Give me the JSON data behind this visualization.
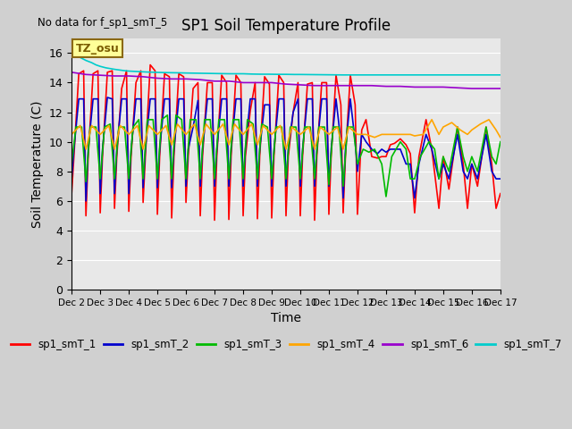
{
  "title": "SP1 Soil Temperature Profile",
  "xlabel": "Time",
  "ylabel": "Soil Temperature (C)",
  "no_data_label": "No data for f_sp1_smT_5",
  "tz_label": "TZ_osu",
  "ylim": [
    0,
    17
  ],
  "yticks": [
    0,
    2,
    4,
    6,
    8,
    10,
    12,
    14,
    16
  ],
  "xtick_labels": [
    "Dec 2",
    "Dec 3",
    "Dec 4",
    "Dec 5",
    "Dec 6",
    "Dec 7",
    "Dec 8",
    "Dec 9",
    "Dec 10",
    "Dec 11",
    "Dec 12",
    "Dec 13",
    "Dec 14",
    "Dec 15",
    "Dec 16",
    "Dec 17"
  ],
  "legend_entries": [
    {
      "label": "sp1_smT_1",
      "color": "#ff0000"
    },
    {
      "label": "sp1_smT_2",
      "color": "#0000cd"
    },
    {
      "label": "sp1_smT_3",
      "color": "#00bb00"
    },
    {
      "label": "sp1_smT_4",
      "color": "#ffa500"
    },
    {
      "label": "sp1_smT_6",
      "color": "#9900cc"
    },
    {
      "label": "sp1_smT_7",
      "color": "#00cccc"
    }
  ],
  "series": {
    "sp1_smT_1": {
      "color": "#ff0000",
      "x": [
        0.0,
        0.08,
        0.25,
        0.42,
        0.5,
        0.58,
        0.75,
        0.92,
        1.0,
        1.08,
        1.25,
        1.42,
        1.5,
        1.58,
        1.75,
        1.92,
        2.0,
        2.08,
        2.25,
        2.42,
        2.5,
        2.58,
        2.75,
        2.92,
        3.0,
        3.08,
        3.25,
        3.42,
        3.5,
        3.58,
        3.75,
        3.92,
        4.0,
        4.08,
        4.25,
        4.42,
        4.5,
        4.58,
        4.75,
        4.92,
        5.0,
        5.08,
        5.25,
        5.42,
        5.5,
        5.58,
        5.75,
        5.92,
        6.0,
        6.08,
        6.25,
        6.42,
        6.5,
        6.58,
        6.75,
        6.92,
        7.0,
        7.08,
        7.25,
        7.42,
        7.5,
        7.58,
        7.75,
        7.92,
        8.0,
        8.08,
        8.25,
        8.42,
        8.5,
        8.58,
        8.75,
        8.92,
        9.0,
        9.08,
        9.25,
        9.42,
        9.5,
        9.58,
        9.75,
        9.92,
        10.0,
        10.15,
        10.3,
        10.5,
        10.7,
        10.85,
        11.0,
        11.15,
        11.3,
        11.5,
        11.7,
        11.85,
        12.0,
        12.15,
        12.4,
        12.6,
        12.85,
        13.0,
        13.2,
        13.5,
        13.7,
        13.85,
        14.0,
        14.2,
        14.5,
        14.7,
        14.85,
        15.0
      ],
      "y": [
        6.5,
        9.0,
        14.6,
        14.8,
        5.0,
        9.0,
        14.6,
        14.8,
        5.2,
        9.0,
        14.7,
        14.8,
        5.5,
        9.0,
        13.6,
        14.8,
        5.3,
        9.0,
        14.0,
        14.8,
        5.9,
        9.0,
        15.2,
        14.8,
        5.1,
        9.0,
        14.6,
        14.4,
        4.85,
        9.0,
        14.6,
        14.4,
        5.9,
        9.0,
        13.6,
        14.0,
        5.0,
        9.0,
        14.0,
        14.0,
        4.7,
        9.0,
        14.5,
        14.0,
        4.75,
        9.0,
        14.5,
        14.0,
        5.0,
        9.0,
        12.1,
        14.0,
        4.8,
        9.0,
        14.4,
        13.9,
        4.85,
        9.0,
        14.5,
        14.0,
        5.0,
        9.0,
        12.0,
        14.0,
        5.0,
        9.0,
        13.9,
        14.0,
        4.7,
        9.0,
        14.0,
        14.0,
        5.1,
        9.0,
        14.5,
        12.5,
        5.2,
        9.0,
        14.5,
        12.5,
        5.1,
        10.8,
        11.5,
        9.0,
        8.9,
        9.0,
        9.0,
        9.8,
        9.9,
        10.2,
        9.8,
        9.2,
        5.2,
        9.0,
        11.5,
        9.5,
        5.5,
        9.0,
        6.8,
        11.0,
        8.5,
        5.5,
        8.5,
        7.0,
        11.0,
        8.5,
        5.5,
        6.5
      ]
    },
    "sp1_smT_2": {
      "color": "#0000cd",
      "x": [
        0.0,
        0.08,
        0.25,
        0.42,
        0.5,
        0.58,
        0.75,
        0.92,
        1.0,
        1.08,
        1.25,
        1.42,
        1.5,
        1.58,
        1.75,
        1.92,
        2.0,
        2.08,
        2.25,
        2.42,
        2.5,
        2.58,
        2.75,
        2.92,
        3.0,
        3.08,
        3.25,
        3.42,
        3.5,
        3.58,
        3.75,
        3.92,
        4.0,
        4.08,
        4.25,
        4.42,
        4.5,
        4.58,
        4.75,
        4.92,
        5.0,
        5.08,
        5.25,
        5.42,
        5.5,
        5.58,
        5.75,
        5.92,
        6.0,
        6.08,
        6.25,
        6.42,
        6.5,
        6.58,
        6.75,
        6.92,
        7.0,
        7.08,
        7.25,
        7.42,
        7.5,
        7.58,
        7.75,
        7.92,
        8.0,
        8.08,
        8.25,
        8.42,
        8.5,
        8.58,
        8.75,
        8.92,
        9.0,
        9.08,
        9.25,
        9.42,
        9.5,
        9.58,
        9.75,
        9.92,
        10.0,
        10.15,
        10.3,
        10.5,
        10.7,
        10.85,
        11.0,
        11.15,
        11.3,
        11.5,
        11.7,
        11.85,
        12.0,
        12.15,
        12.4,
        12.6,
        12.85,
        13.0,
        13.2,
        13.5,
        13.7,
        13.85,
        14.0,
        14.2,
        14.5,
        14.7,
        14.85,
        15.0
      ],
      "y": [
        7.5,
        9.5,
        12.9,
        12.9,
        6.0,
        9.5,
        12.9,
        12.9,
        6.5,
        9.5,
        13.0,
        12.9,
        6.5,
        9.5,
        12.9,
        12.9,
        6.5,
        9.5,
        12.9,
        12.9,
        6.9,
        9.5,
        12.9,
        12.9,
        6.9,
        9.5,
        12.9,
        12.9,
        6.9,
        9.5,
        12.9,
        12.9,
        7.0,
        9.5,
        11.0,
        12.8,
        7.0,
        9.5,
        12.9,
        12.9,
        7.0,
        9.5,
        12.9,
        12.9,
        7.0,
        9.5,
        12.9,
        12.9,
        7.0,
        9.5,
        12.9,
        12.9,
        7.0,
        9.5,
        12.5,
        12.5,
        7.0,
        9.5,
        12.9,
        12.9,
        7.0,
        9.5,
        12.0,
        12.9,
        7.0,
        9.5,
        12.9,
        12.9,
        7.0,
        9.5,
        12.9,
        12.9,
        7.0,
        9.5,
        12.9,
        10.0,
        6.2,
        9.5,
        12.9,
        10.0,
        8.0,
        10.5,
        10.0,
        9.5,
        9.2,
        9.5,
        9.3,
        9.5,
        9.5,
        9.5,
        8.5,
        8.5,
        6.2,
        8.5,
        10.5,
        9.5,
        7.5,
        8.5,
        7.5,
        10.5,
        8.0,
        7.5,
        8.5,
        7.5,
        10.5,
        8.0,
        7.5,
        7.5
      ]
    },
    "sp1_smT_3": {
      "color": "#00bb00",
      "x": [
        0.0,
        0.15,
        0.35,
        0.5,
        0.65,
        0.85,
        1.0,
        1.15,
        1.35,
        1.5,
        1.65,
        1.85,
        2.0,
        2.15,
        2.35,
        2.5,
        2.65,
        2.85,
        3.0,
        3.15,
        3.35,
        3.5,
        3.65,
        3.85,
        4.0,
        4.15,
        4.35,
        4.5,
        4.65,
        4.85,
        5.0,
        5.15,
        5.35,
        5.5,
        5.65,
        5.85,
        6.0,
        6.15,
        6.35,
        6.5,
        6.65,
        6.85,
        7.0,
        7.15,
        7.35,
        7.5,
        7.65,
        7.85,
        8.0,
        8.15,
        8.35,
        8.5,
        8.65,
        8.85,
        9.0,
        9.15,
        9.35,
        9.5,
        9.65,
        9.85,
        10.0,
        10.2,
        10.4,
        10.6,
        10.85,
        11.0,
        11.2,
        11.5,
        11.7,
        11.85,
        12.0,
        12.2,
        12.5,
        12.7,
        12.85,
        13.0,
        13.2,
        13.5,
        13.7,
        13.85,
        14.0,
        14.2,
        14.5,
        14.7,
        14.85,
        15.0
      ],
      "y": [
        8.5,
        11.0,
        11.0,
        7.3,
        11.0,
        11.0,
        7.5,
        11.0,
        11.2,
        7.5,
        11.0,
        11.0,
        7.5,
        11.0,
        11.5,
        7.5,
        11.5,
        11.5,
        7.5,
        11.5,
        11.8,
        7.5,
        11.8,
        11.5,
        7.5,
        11.5,
        11.5,
        7.5,
        11.5,
        11.5,
        7.5,
        11.5,
        11.5,
        7.5,
        11.5,
        11.5,
        7.5,
        11.5,
        11.2,
        7.5,
        11.2,
        11.0,
        7.5,
        11.0,
        11.0,
        7.5,
        11.0,
        11.0,
        7.5,
        11.0,
        11.0,
        7.5,
        11.0,
        11.0,
        7.1,
        11.0,
        11.0,
        7.0,
        11.0,
        11.0,
        8.5,
        9.5,
        9.3,
        9.5,
        8.5,
        6.3,
        9.0,
        10.0,
        9.5,
        7.5,
        7.5,
        9.0,
        10.0,
        9.5,
        7.5,
        9.0,
        8.0,
        11.0,
        9.0,
        8.0,
        9.0,
        8.0,
        11.0,
        9.0,
        8.5,
        10.0
      ]
    },
    "sp1_smT_4": {
      "color": "#ffa500",
      "x": [
        0.0,
        0.3,
        0.5,
        0.7,
        1.0,
        1.3,
        1.5,
        1.7,
        2.0,
        2.3,
        2.5,
        2.7,
        3.0,
        3.3,
        3.5,
        3.7,
        4.0,
        4.3,
        4.5,
        4.7,
        5.0,
        5.3,
        5.5,
        5.7,
        6.0,
        6.3,
        6.5,
        6.7,
        7.0,
        7.3,
        7.5,
        7.7,
        8.0,
        8.3,
        8.5,
        8.7,
        9.0,
        9.3,
        9.5,
        9.7,
        10.0,
        10.3,
        10.6,
        10.85,
        11.0,
        11.3,
        11.6,
        11.85,
        12.0,
        12.3,
        12.6,
        12.85,
        13.0,
        13.3,
        13.6,
        13.85,
        14.0,
        14.3,
        14.6,
        14.85,
        15.0
      ],
      "y": [
        10.5,
        11.1,
        9.5,
        11.1,
        10.5,
        11.1,
        9.5,
        11.1,
        10.5,
        11.1,
        9.5,
        11.1,
        10.5,
        11.1,
        9.8,
        11.2,
        10.5,
        11.2,
        9.8,
        11.2,
        10.5,
        11.2,
        9.8,
        11.2,
        10.5,
        11.2,
        9.8,
        11.1,
        10.5,
        11.1,
        9.5,
        11.0,
        10.5,
        11.0,
        9.5,
        11.0,
        10.5,
        11.0,
        9.5,
        11.0,
        10.5,
        10.5,
        10.3,
        10.5,
        10.5,
        10.5,
        10.5,
        10.5,
        10.4,
        10.5,
        11.5,
        10.5,
        11.0,
        11.3,
        10.8,
        10.5,
        10.8,
        11.2,
        11.5,
        10.8,
        10.3
      ]
    },
    "sp1_smT_6": {
      "color": "#9900cc",
      "x": [
        0.0,
        0.5,
        1.0,
        1.5,
        2.0,
        2.5,
        3.0,
        3.5,
        4.0,
        4.5,
        5.0,
        5.5,
        6.0,
        6.5,
        7.0,
        7.5,
        8.0,
        8.5,
        9.0,
        9.5,
        10.0,
        10.5,
        11.0,
        11.5,
        12.0,
        12.5,
        13.0,
        13.5,
        14.0,
        14.5,
        15.0
      ],
      "y": [
        14.7,
        14.55,
        14.5,
        14.45,
        14.45,
        14.4,
        14.3,
        14.25,
        14.25,
        14.2,
        14.1,
        14.1,
        14.0,
        14.0,
        14.0,
        13.9,
        13.85,
        13.8,
        13.8,
        13.8,
        13.8,
        13.8,
        13.75,
        13.75,
        13.7,
        13.7,
        13.7,
        13.65,
        13.6,
        13.6,
        13.6
      ]
    },
    "sp1_smT_7": {
      "color": "#00cccc",
      "x": [
        0.0,
        0.15,
        0.3,
        0.5,
        0.7,
        0.85,
        1.0,
        1.2,
        1.5,
        1.8,
        2.0,
        2.3,
        2.6,
        2.9,
        3.2,
        3.5,
        3.8,
        4.0,
        4.3,
        4.6,
        4.9,
        5.2,
        5.5,
        5.8,
        6.0,
        6.3,
        6.6,
        6.9,
        7.2,
        7.5,
        7.8,
        8.0,
        8.5,
        9.0,
        9.5,
        10.0,
        10.5,
        11.0,
        11.5,
        12.0,
        12.5,
        13.0,
        13.5,
        14.0,
        14.5,
        15.0
      ],
      "y": [
        16.0,
        15.85,
        15.7,
        15.5,
        15.35,
        15.2,
        15.1,
        15.0,
        14.9,
        14.82,
        14.78,
        14.75,
        14.72,
        14.7,
        14.68,
        14.67,
        14.66,
        14.65,
        14.64,
        14.63,
        14.62,
        14.61,
        14.6,
        14.6,
        14.6,
        14.58,
        14.57,
        14.57,
        14.56,
        14.56,
        14.55,
        14.55,
        14.54,
        14.53,
        14.52,
        14.52,
        14.52,
        14.52,
        14.52,
        14.52,
        14.52,
        14.52,
        14.52,
        14.52,
        14.52,
        14.52
      ]
    }
  }
}
